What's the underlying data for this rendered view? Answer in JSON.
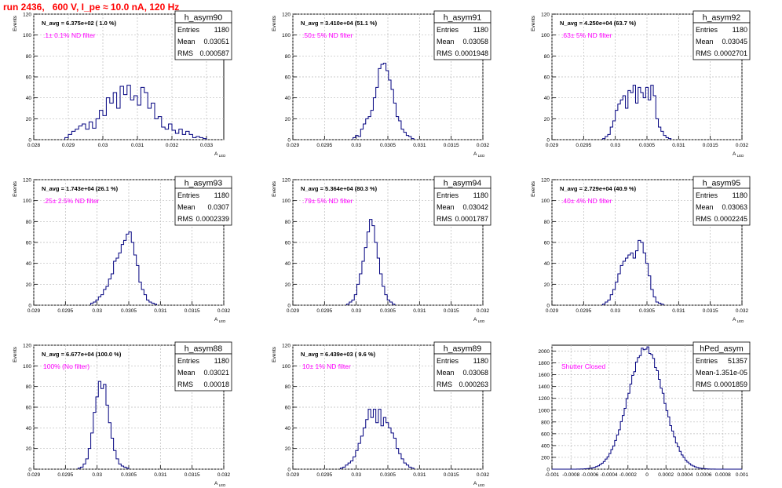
{
  "header": {
    "run_title": "run 2436,   600 V, I_pe ≈ 10.0 nA, 120 Hz"
  },
  "colors": {
    "series": "#00007f",
    "grid": "#bbbbbb",
    "filter_label": "#ff00ff",
    "title": "#ff0000"
  },
  "chart_data": [
    {
      "type": "histogram",
      "name": "h_asym90",
      "annotation": "N_avg = 6.375e+02 ( 1.0 %)",
      "filter_label": ".1± 0.1% ND filter",
      "stats": {
        "entries": "1180",
        "mean": "0.03051",
        "rms": "0.000587"
      },
      "xlabel": "A_LED",
      "ylabel": "Events",
      "xlim": [
        0.028,
        0.0335
      ],
      "ylim": [
        0,
        120
      ],
      "xticks": [
        0.028,
        0.029,
        0.03,
        0.031,
        0.032,
        0.033
      ],
      "xtick_labels": [
        "0.028",
        "0.029",
        "0.03",
        "0.031",
        "0.032",
        "0.033"
      ],
      "yticks": [
        0,
        20,
        40,
        60,
        80,
        100,
        120
      ],
      "bin_edges_start": 0.0289,
      "bin_width": 0.0001,
      "values": [
        2,
        5,
        8,
        10,
        13,
        15,
        10,
        17,
        11,
        20,
        28,
        23,
        40,
        35,
        45,
        30,
        51,
        43,
        52,
        38,
        42,
        33,
        50,
        45,
        30,
        35,
        20,
        22,
        12,
        10,
        15,
        9,
        6,
        10,
        5,
        8,
        5,
        2,
        3,
        2,
        1
      ]
    },
    {
      "type": "histogram",
      "name": "h_asym91",
      "annotation": "N_avg = 3.410e+04 (51.1 %)",
      "filter_label": ".50± 5% ND filter",
      "stats": {
        "entries": "1180",
        "mean": "0.03058",
        "rms": "0.0001948"
      },
      "xlabel": "A_LED",
      "ylabel": "Events",
      "xlim": [
        0.029,
        0.032
      ],
      "ylim": [
        0,
        120
      ],
      "xticks": [
        0.029,
        0.0295,
        0.03,
        0.0305,
        0.031,
        0.0315,
        0.032
      ],
      "xtick_labels": [
        "0.029",
        "0.0295",
        "0.03",
        "0.0305",
        "0.031",
        "0.0315",
        "0.032"
      ],
      "yticks": [
        0,
        20,
        40,
        60,
        80,
        100,
        120
      ],
      "bin_edges_start": 0.02995,
      "bin_width": 4e-05,
      "values": [
        2,
        4,
        3,
        10,
        15,
        20,
        22,
        28,
        40,
        50,
        68,
        72,
        73,
        66,
        57,
        48,
        35,
        22,
        18,
        10,
        7,
        4,
        3,
        1
      ]
    },
    {
      "type": "histogram",
      "name": "h_asym92",
      "annotation": "N_avg = 4.250e+04 (63.7 %)",
      "filter_label": ".63± 5% ND filter",
      "stats": {
        "entries": "1180",
        "mean": "0.03045",
        "rms": "0.0002701"
      },
      "xlabel": "A_LED",
      "ylabel": "Events",
      "xlim": [
        0.029,
        0.032
      ],
      "ylim": [
        0,
        120
      ],
      "xticks": [
        0.029,
        0.0295,
        0.03,
        0.0305,
        0.031,
        0.0315,
        0.032
      ],
      "xtick_labels": [
        "0.029",
        "0.0295",
        "0.03",
        "0.0305",
        "0.031",
        "0.0315",
        "0.032"
      ],
      "yticks": [
        0,
        20,
        40,
        60,
        80,
        100,
        120
      ],
      "bin_edges_start": 0.0298,
      "bin_width": 4e-05,
      "values": [
        1,
        3,
        5,
        12,
        18,
        28,
        34,
        38,
        42,
        30,
        47,
        45,
        52,
        35,
        50,
        45,
        40,
        50,
        38,
        52,
        42,
        20,
        12,
        8,
        4,
        2,
        1
      ]
    },
    {
      "type": "histogram",
      "name": "h_asym93",
      "annotation": "N_avg = 1.743e+04 (26.1 %)",
      "filter_label": ".25± 2.5% ND filter",
      "stats": {
        "entries": "1180",
        "mean": "0.0307",
        "rms": "0.0002339"
      },
      "xlabel": "A_LED",
      "ylabel": "Events",
      "xlim": [
        0.029,
        0.032
      ],
      "ylim": [
        0,
        120
      ],
      "xticks": [
        0.029,
        0.0295,
        0.03,
        0.0305,
        0.031,
        0.0315,
        0.032
      ],
      "xtick_labels": [
        "0.029",
        "0.0295",
        "0.03",
        "0.0305",
        "0.031",
        "0.0315",
        "0.032"
      ],
      "yticks": [
        0,
        20,
        40,
        60,
        80,
        100,
        120
      ],
      "bin_edges_start": 0.0299,
      "bin_width": 4e-05,
      "values": [
        2,
        3,
        5,
        8,
        10,
        15,
        18,
        25,
        30,
        42,
        45,
        50,
        58,
        62,
        68,
        70,
        60,
        48,
        38,
        22,
        15,
        10,
        5,
        3,
        2,
        1
      ]
    },
    {
      "type": "histogram",
      "name": "h_asym94",
      "annotation": "N_avg = 5.364e+04 (80.3 %)",
      "filter_label": ".79± 5% ND filter",
      "stats": {
        "entries": "1180",
        "mean": "0.03042",
        "rms": "0.0001787"
      },
      "xlabel": "A_LED",
      "ylabel": "Events",
      "xlim": [
        0.029,
        0.032
      ],
      "ylim": [
        0,
        120
      ],
      "xticks": [
        0.029,
        0.0295,
        0.03,
        0.0305,
        0.031,
        0.0315,
        0.032
      ],
      "xtick_labels": [
        "0.029",
        "0.0295",
        "0.03",
        "0.0305",
        "0.031",
        "0.0315",
        "0.032"
      ],
      "yticks": [
        0,
        20,
        40,
        60,
        80,
        100,
        120
      ],
      "bin_edges_start": 0.02985,
      "bin_width": 4e-05,
      "values": [
        1,
        3,
        5,
        10,
        20,
        30,
        42,
        55,
        70,
        82,
        76,
        60,
        45,
        30,
        18,
        10,
        5,
        3,
        1
      ]
    },
    {
      "type": "histogram",
      "name": "h_asym95",
      "annotation": "N_avg = 2.729e+04 (40.9 %)",
      "filter_label": ".40± 4% ND filter",
      "stats": {
        "entries": "1180",
        "mean": "0.03063",
        "rms": "0.0002245"
      },
      "xlabel": "A_LED",
      "ylabel": "Events",
      "xlim": [
        0.029,
        0.032
      ],
      "ylim": [
        0,
        120
      ],
      "xticks": [
        0.029,
        0.0295,
        0.03,
        0.0305,
        0.031,
        0.0315,
        0.032
      ],
      "xtick_labels": [
        "0.029",
        "0.0295",
        "0.03",
        "0.0305",
        "0.031",
        "0.0315",
        "0.032"
      ],
      "yticks": [
        0,
        20,
        40,
        60,
        80,
        100,
        120
      ],
      "bin_edges_start": 0.0298,
      "bin_width": 4e-05,
      "values": [
        1,
        3,
        5,
        10,
        15,
        22,
        30,
        38,
        42,
        45,
        48,
        50,
        45,
        52,
        62,
        60,
        50,
        40,
        28,
        15,
        8,
        3,
        2,
        1
      ]
    },
    {
      "type": "histogram",
      "name": "h_asym88",
      "annotation": "N_avg = 6.677e+04 (100.0 %)",
      "filter_label": "100% (No filter)",
      "stats": {
        "entries": "1180",
        "mean": "0.03021",
        "rms": "0.00018"
      },
      "xlabel": "A_LED",
      "ylabel": "Events",
      "xlim": [
        0.029,
        0.032
      ],
      "ylim": [
        0,
        120
      ],
      "xticks": [
        0.029,
        0.0295,
        0.03,
        0.0305,
        0.031,
        0.0315,
        0.032
      ],
      "xtick_labels": [
        "0.029",
        "0.0295",
        "0.03",
        "0.0305",
        "0.031",
        "0.0315",
        "0.032"
      ],
      "yticks": [
        0,
        20,
        40,
        60,
        80,
        100,
        120
      ],
      "bin_edges_start": 0.0297,
      "bin_width": 4e-05,
      "values": [
        1,
        2,
        5,
        10,
        20,
        35,
        55,
        70,
        85,
        78,
        82,
        62,
        45,
        30,
        18,
        10,
        5,
        3,
        2,
        1
      ]
    },
    {
      "type": "histogram",
      "name": "h_asym89",
      "annotation": "N_avg = 6.439e+03 ( 9.6 %)",
      "filter_label": "10± 1% ND filter",
      "stats": {
        "entries": "1180",
        "mean": "0.03068",
        "rms": "0.000263"
      },
      "xlabel": "A_LED",
      "ylabel": "Events",
      "xlim": [
        0.029,
        0.032
      ],
      "ylim": [
        0,
        120
      ],
      "xticks": [
        0.029,
        0.0295,
        0.03,
        0.0305,
        0.031,
        0.0315,
        0.032
      ],
      "xtick_labels": [
        "0.029",
        "0.0295",
        "0.03",
        "0.0305",
        "0.031",
        "0.0315",
        "0.032"
      ],
      "yticks": [
        0,
        20,
        40,
        60,
        80,
        100,
        120
      ],
      "bin_edges_start": 0.02975,
      "bin_width": 4e-05,
      "values": [
        1,
        2,
        4,
        6,
        8,
        12,
        18,
        25,
        32,
        40,
        48,
        58,
        50,
        58,
        45,
        58,
        42,
        50,
        45,
        40,
        35,
        30,
        20,
        15,
        10,
        6,
        4,
        2,
        1
      ]
    },
    {
      "type": "histogram",
      "name": "hPed_asym",
      "annotation": "",
      "filter_label": "Shutter Closed",
      "stats": {
        "entries": "51357",
        "mean": "-1.351e-05",
        "rms": "0.0001859"
      },
      "xlabel": "",
      "ylabel": "",
      "xlim": [
        -0.001,
        0.001
      ],
      "ylim": [
        0,
        2100
      ],
      "xticks": [
        -0.001,
        -0.0008,
        -0.0006,
        -0.0004,
        -0.0002,
        0,
        0.0002,
        0.0004,
        0.0006,
        0.0008,
        0.001
      ],
      "xtick_labels": [
        "-0.001",
        "-0.0008",
        "-0.0006",
        "-0.0004",
        "-0.0002",
        "0",
        "0.0002",
        "0.0004",
        "0.0006",
        "0.0008",
        "0.001"
      ],
      "yticks": [
        0,
        200,
        400,
        600,
        800,
        1000,
        1200,
        1400,
        1600,
        1800,
        2000
      ],
      "bin_edges_start": -0.001,
      "bin_width": 2e-05,
      "gaussian": {
        "amplitude": 2050,
        "mean": -1.35e-05,
        "sigma": 0.000186
      }
    }
  ]
}
